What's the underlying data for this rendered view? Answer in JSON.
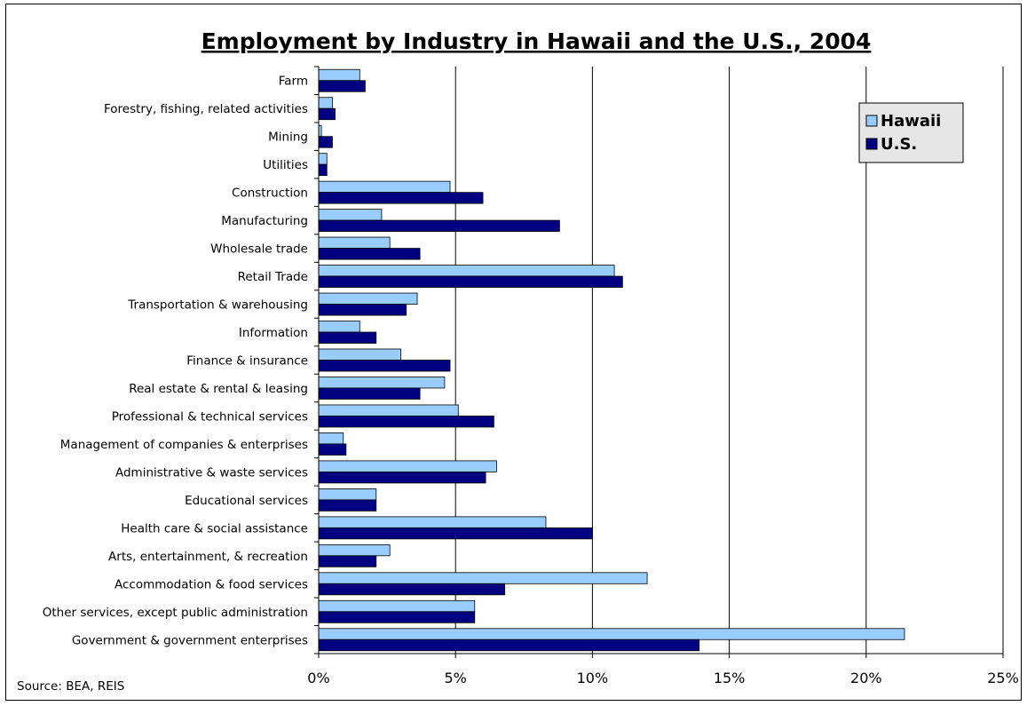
{
  "chart_data": {
    "type": "bar",
    "orientation": "horizontal",
    "title": "Employment by Industry in Hawaii and the U.S., 2004",
    "source": "Source: BEA, REIS",
    "categories": [
      "Farm",
      "Forestry, fishing, related activities",
      "Mining",
      "Utilities",
      "Construction",
      "Manufacturing",
      "Wholesale trade",
      "Retail Trade",
      "Transportation & warehousing",
      "Information",
      "Finance & insurance",
      "Real estate & rental & leasing",
      "Professional & technical services",
      "Management of companies & enterprises",
      "Administrative & waste services",
      "Educational services",
      "Health care & social assistance",
      "Arts, entertainment, & recreation",
      "Accommodation & food services",
      "Other services, except public administration",
      "Government & government enterprises"
    ],
    "series": [
      {
        "name": "Hawaii",
        "color": "#99CCFF",
        "values": [
          1.5,
          0.5,
          0.1,
          0.3,
          4.8,
          2.3,
          2.6,
          10.8,
          3.6,
          1.5,
          3.0,
          4.6,
          5.1,
          0.9,
          6.5,
          2.1,
          8.3,
          2.6,
          12.0,
          5.7,
          21.4
        ]
      },
      {
        "name": "U.S.",
        "color": "#000080",
        "values": [
          1.7,
          0.6,
          0.5,
          0.3,
          6.0,
          8.8,
          3.7,
          11.1,
          3.2,
          2.1,
          4.8,
          3.7,
          6.4,
          1.0,
          6.1,
          2.1,
          10.0,
          2.1,
          6.8,
          5.7,
          13.9
        ]
      }
    ],
    "xlim": [
      0,
      25
    ],
    "xticks": [
      "0%",
      "5%",
      "10%",
      "15%",
      "20%",
      "25%"
    ],
    "grid": "vertical",
    "legend": "top-right"
  }
}
